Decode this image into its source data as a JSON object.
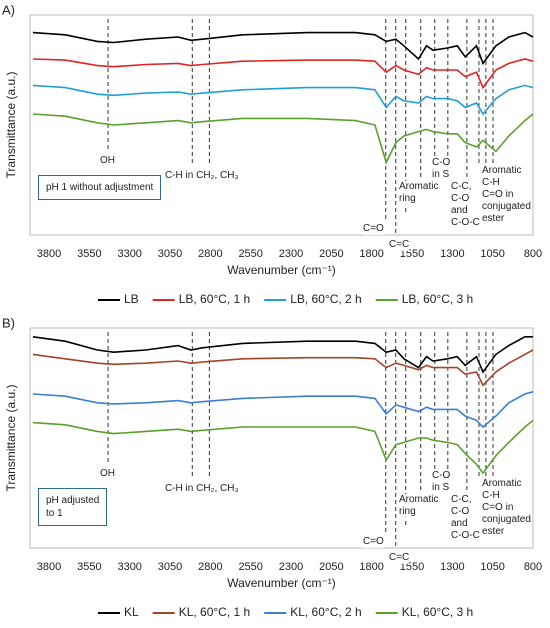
{
  "chart_data": [
    {
      "type": "line",
      "panel_label": "A)",
      "ylabel": "Transmittance (a.u.)",
      "xlabel": "Wavenumber (cm⁻¹)",
      "note": "pH 1 without adjustment",
      "xlim": [
        3918,
        800
      ],
      "ylim": [
        0,
        100
      ],
      "xticks": [
        3800,
        3550,
        3300,
        3050,
        2800,
        2550,
        2300,
        2050,
        1800,
        1550,
        1300,
        1050,
        800
      ],
      "x": [
        3900,
        3700,
        3500,
        3400,
        3200,
        3000,
        2920,
        2850,
        2600,
        2200,
        1900,
        1780,
        1710,
        1650,
        1600,
        1510,
        1460,
        1420,
        1330,
        1270,
        1220,
        1150,
        1110,
        1030,
        950,
        850,
        800
      ],
      "series": [
        {
          "name": "LB",
          "color": "#000000",
          "values": [
            92,
            91,
            88,
            87.5,
            89,
            90,
            88.5,
            89,
            91,
            92,
            92,
            91,
            88,
            89,
            86,
            80,
            86,
            84,
            85,
            86,
            81,
            86,
            78,
            86,
            90,
            92,
            90
          ]
        },
        {
          "name": "LB, 60°C, 1 h",
          "color": "#e02424",
          "values": [
            80,
            79.5,
            77,
            76.5,
            77.5,
            78,
            77,
            77.5,
            79,
            79.5,
            79.5,
            79,
            74,
            77,
            75,
            73,
            76,
            75,
            75,
            75,
            72,
            74,
            67,
            75,
            78,
            80,
            79
          ]
        },
        {
          "name": "LB, 60°C, 2 h",
          "color": "#1fa0d4",
          "values": [
            68,
            67,
            64,
            63.5,
            64.5,
            65,
            64,
            64.5,
            66,
            67,
            67,
            66,
            58,
            63,
            61,
            60,
            63,
            62,
            62,
            61,
            58,
            60,
            55,
            62,
            66,
            68,
            67
          ]
        },
        {
          "name": "LB, 60°C, 3 h",
          "color": "#5aa02c",
          "values": [
            55,
            54,
            51,
            50,
            51,
            52,
            51,
            51.5,
            53,
            53,
            52,
            50,
            33,
            42,
            45,
            47,
            48,
            47,
            46,
            46,
            42,
            40,
            43,
            38,
            45,
            52,
            55
          ]
        }
      ],
      "band_lines": [
        3434,
        2912,
        2806,
        1713,
        1651,
        1589,
        1496,
        1409,
        1328,
        1210,
        1135,
        1092,
        1048
      ],
      "annotations": [
        "OH",
        "C-H in CH₂, CH₃",
        "C=O",
        "C=C",
        "Aromatic\nring",
        "C-O\nin S",
        "C-C,\nC-O\nand\nC-O-C",
        "Aromatic\nC-H",
        "C=O in\nconjugated\nester"
      ]
    },
    {
      "type": "line",
      "panel_label": "B)",
      "ylabel": "Transmittance (a.u.)",
      "xlabel": "Wavenumber (cm⁻¹)",
      "note": "pH adjusted\nto 1",
      "xlim": [
        3918,
        800
      ],
      "ylim": [
        0,
        100
      ],
      "xticks": [
        3800,
        3550,
        3300,
        3050,
        2800,
        2550,
        2300,
        2050,
        1800,
        1550,
        1300,
        1050,
        800
      ],
      "x": [
        3900,
        3700,
        3500,
        3400,
        3200,
        3000,
        2920,
        2850,
        2600,
        2200,
        1900,
        1780,
        1710,
        1650,
        1600,
        1510,
        1460,
        1420,
        1330,
        1270,
        1220,
        1150,
        1110,
        1030,
        950,
        850,
        800
      ],
      "series": [
        {
          "name": "KL",
          "color": "#000000",
          "values": [
            96,
            94,
            90,
            89,
            90,
            92,
            90,
            91,
            93,
            94,
            94,
            93,
            89,
            90,
            86,
            82,
            87,
            85,
            86,
            87,
            83,
            87,
            80,
            88,
            92,
            96,
            96
          ]
        },
        {
          "name": "KL, 60°C, 1 h",
          "color": "#a0452c",
          "values": [
            88,
            86,
            84,
            83.5,
            84,
            85,
            84,
            84.5,
            86,
            86.5,
            86.5,
            86,
            82,
            84,
            83,
            81,
            83,
            82,
            82,
            82,
            79,
            80,
            74,
            80,
            84,
            88,
            90
          ]
        },
        {
          "name": "KL, 60°C, 2 h",
          "color": "#3a7fd0",
          "values": [
            70,
            69,
            66,
            65.5,
            66,
            67,
            66,
            66.5,
            68,
            69,
            69,
            68,
            61,
            65,
            64,
            62,
            64,
            63,
            63,
            63,
            60,
            58,
            55,
            60,
            66,
            70,
            71
          ]
        },
        {
          "name": "KL, 60°C, 3 h",
          "color": "#5aa02c",
          "values": [
            57,
            56,
            53,
            52,
            53,
            54,
            53,
            53.5,
            55,
            55,
            55,
            53,
            40,
            47,
            48,
            50,
            50,
            49,
            48,
            47,
            43,
            38,
            34,
            42,
            48,
            55,
            58
          ]
        }
      ],
      "band_lines": [
        3434,
        2912,
        2806,
        1713,
        1651,
        1589,
        1496,
        1409,
        1328,
        1210,
        1135,
        1092,
        1048
      ],
      "annotations": [
        "OH",
        "C-H in CH₂, CH₃",
        "C=O",
        "C=C",
        "Aromatic\nring",
        "C-O\nin S",
        "C-C,\nC-O\nand\nC-O-C",
        "Aromatic\nC-H",
        "C=O in\nconjugated\nester"
      ]
    }
  ]
}
